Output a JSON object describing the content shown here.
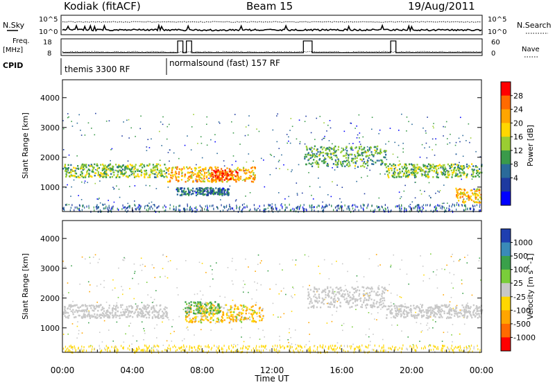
{
  "header": {
    "station": "Kodiak (fitACF)",
    "beam": "Beam 15",
    "date": "19/Aug/2011"
  },
  "summary": {
    "left_top_label": "N.Sky",
    "right_top_label": "N.Search",
    "top_ticks_left": [
      "10^5",
      "10^0"
    ],
    "top_ticks_right": [
      "10^5",
      "10^0"
    ],
    "freq_label": "Freq.",
    "freq_unit": "[MHz]",
    "freq_ticks": [
      "18",
      "8"
    ],
    "nave_label": "Nave",
    "nave_ticks": [
      "60",
      "0"
    ],
    "cpid_label": "CPID",
    "cpid_modes": [
      {
        "label": "themis 3300 RF",
        "start_hour": 0
      },
      {
        "label": "normalsound (fast) 157 RF",
        "start_hour": 6
      }
    ]
  },
  "chart_data": [
    {
      "type": "heatmap",
      "parameter": "power",
      "ylabel": "Slant Range [km]",
      "xlabel": "",
      "xlim_hours": [
        0,
        24
      ],
      "ylim": [
        180,
        4600
      ],
      "yticks": [
        1000,
        2000,
        3000,
        4000
      ],
      "colorbar_label": "Power [dB]",
      "colorbar_ticks": [
        "28",
        "24",
        "20",
        "16",
        "12",
        "8",
        "4"
      ],
      "colorbar_colors": [
        "#ff0000",
        "#ff6a00",
        "#ffa500",
        "#ffd700",
        "#9acd32",
        "#3a9a4a",
        "#2a6a9a",
        "#1e3aa0",
        "#0000ff"
      ],
      "bands": [
        {
          "x": [
            0,
            6
          ],
          "range": [
            1350,
            1800
          ],
          "value": 16
        },
        {
          "x": [
            6,
            11
          ],
          "range": [
            1200,
            1700
          ],
          "value": 22
        },
        {
          "x": [
            8.5,
            10
          ],
          "range": [
            1250,
            1600
          ],
          "value": 28
        },
        {
          "x": [
            13.8,
            18.5
          ],
          "range": [
            1700,
            2400
          ],
          "value": 14
        },
        {
          "x": [
            18.5,
            24
          ],
          "range": [
            1350,
            1800
          ],
          "value": 16
        },
        {
          "x": [
            22.5,
            24
          ],
          "range": [
            500,
            1000
          ],
          "value": 22
        },
        {
          "x": [
            6.5,
            9.5
          ],
          "range": [
            750,
            1000
          ],
          "value": 10
        }
      ]
    },
    {
      "type": "heatmap",
      "parameter": "velocity",
      "ylabel": "Slant Range [km]",
      "xlabel": "Time UT",
      "xlim_hours": [
        0,
        24
      ],
      "ylim": [
        180,
        4600
      ],
      "yticks": [
        1000,
        2000,
        3000,
        4000
      ],
      "xticks": [
        "00:00",
        "04:00",
        "08:00",
        "12:00",
        "16:00",
        "20:00",
        "00:00"
      ],
      "colorbar_label": "Velocity [m s^-1]",
      "colorbar_ticks": [
        "1000",
        "500",
        "100",
        "25",
        "-25",
        "-100",
        "-500",
        "-1000"
      ],
      "colorbar_colors": [
        "#1f3fb0",
        "#3a8ab8",
        "#3aa04a",
        "#7acd3a",
        "#c8c8c8",
        "#ffd700",
        "#ffa500",
        "#ff6a00",
        "#ff0000"
      ],
      "bands": [
        {
          "x": [
            0,
            6
          ],
          "range": [
            1350,
            1800
          ],
          "value": 0
        },
        {
          "x": [
            7,
            11.5
          ],
          "range": [
            1200,
            1800
          ],
          "value": -100
        },
        {
          "x": [
            7,
            9
          ],
          "range": [
            1500,
            1900
          ],
          "value": 100
        },
        {
          "x": [
            14,
            18.5
          ],
          "range": [
            1700,
            2400
          ],
          "value": 0
        },
        {
          "x": [
            18.5,
            24
          ],
          "range": [
            1350,
            1800
          ],
          "value": 0
        }
      ]
    }
  ]
}
